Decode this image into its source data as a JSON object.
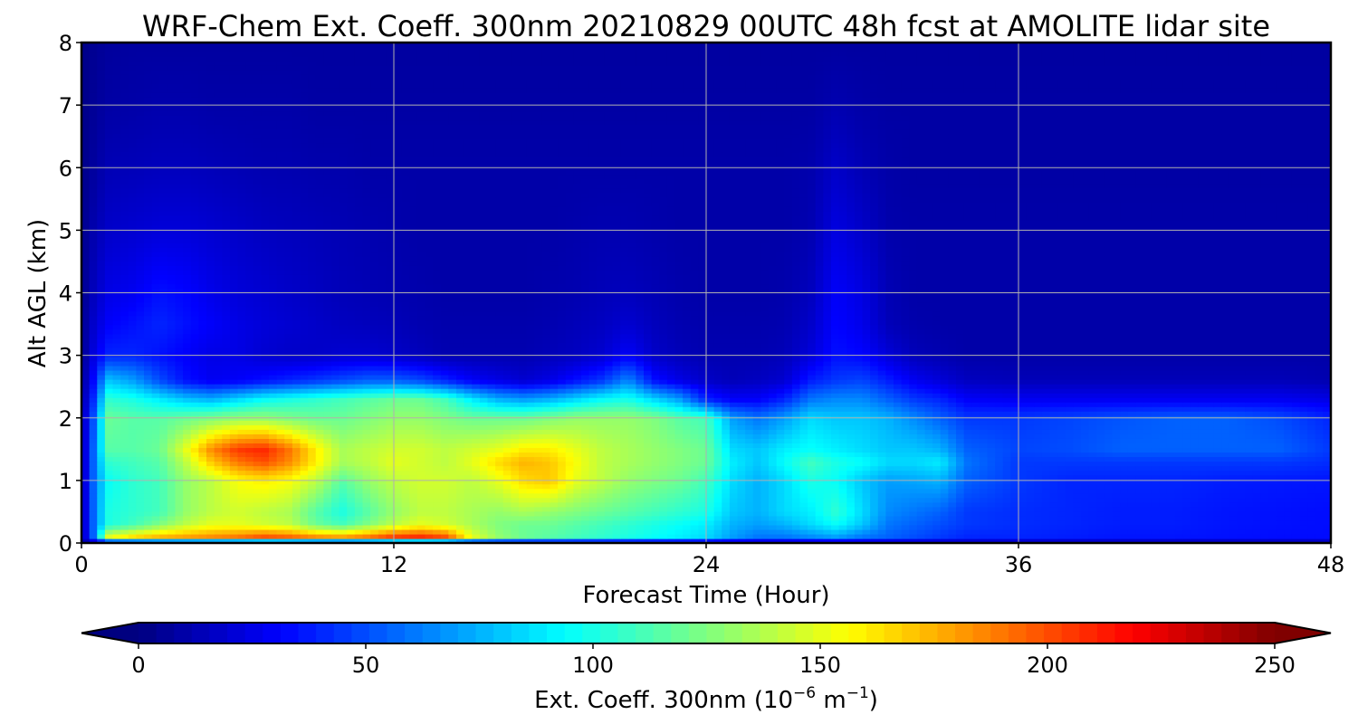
{
  "chart_data": {
    "type": "heatmap",
    "title": "WRF-Chem Ext. Coeff. 300nm  20210829 00UTC 48h fcst at AMOLITE lidar site",
    "xlabel": "Forecast Time (Hour)",
    "ylabel": "Alt AGL (km)",
    "xlim": [
      0,
      48
    ],
    "ylim": [
      0,
      8
    ],
    "xticks": [
      0,
      12,
      24,
      36,
      48
    ],
    "yticks": [
      0,
      1,
      2,
      3,
      4,
      5,
      6,
      7,
      8
    ],
    "grid": true,
    "colormap": "jet",
    "colorbar": {
      "label": "Ext. Coeff. 300nm  (10",
      "label_exp1": "−6",
      "label_mid": " m",
      "label_exp2": "−1",
      "label_end": ")",
      "range": [
        0,
        250
      ],
      "ticks": [
        0,
        50,
        100,
        150,
        200,
        250
      ],
      "extend": "both"
    },
    "x": [
      0,
      0.5,
      1,
      2,
      3,
      4,
      5,
      6,
      7,
      8,
      9,
      10,
      11,
      12,
      13,
      14,
      15,
      16,
      17,
      18,
      19,
      20,
      21,
      22,
      23,
      24,
      25,
      26,
      27,
      28,
      29,
      30,
      31,
      32,
      33,
      34,
      36,
      38,
      40,
      42,
      44,
      46,
      48
    ],
    "y": [
      0,
      0.1,
      0.3,
      0.5,
      1.0,
      1.3,
      1.5,
      2.0,
      2.3,
      2.6,
      3.0,
      3.5,
      4.0,
      5.0,
      6.0,
      7.0,
      8.0
    ],
    "z": [
      [
        10,
        10,
        10,
        10,
        10,
        10,
        10,
        10,
        10,
        10,
        10,
        10,
        10,
        10,
        10,
        10,
        10,
        10,
        10,
        10,
        10,
        10,
        10,
        10,
        10,
        10,
        10,
        10,
        10,
        10,
        10,
        10,
        10,
        10,
        10,
        10,
        10,
        10,
        10,
        10,
        10,
        10,
        10
      ],
      [
        10,
        60,
        150,
        165,
        175,
        180,
        185,
        190,
        200,
        195,
        185,
        180,
        190,
        205,
        210,
        200,
        150,
        130,
        120,
        115,
        110,
        105,
        100,
        95,
        90,
        85,
        70,
        60,
        60,
        65,
        70,
        60,
        55,
        50,
        45,
        40,
        40,
        38,
        36,
        36,
        35,
        34,
        34
      ],
      [
        10,
        60,
        100,
        110,
        125,
        140,
        150,
        150,
        145,
        140,
        120,
        110,
        125,
        140,
        150,
        145,
        135,
        125,
        120,
        120,
        115,
        110,
        105,
        100,
        95,
        90,
        75,
        70,
        75,
        85,
        95,
        80,
        60,
        55,
        50,
        45,
        42,
        40,
        38,
        38,
        36,
        35,
        34
      ],
      [
        10,
        60,
        100,
        105,
        110,
        130,
        140,
        145,
        140,
        135,
        115,
        100,
        115,
        130,
        140,
        140,
        135,
        130,
        135,
        130,
        125,
        120,
        115,
        110,
        105,
        100,
        80,
        75,
        85,
        90,
        105,
        85,
        65,
        60,
        55,
        45,
        42,
        40,
        38,
        38,
        36,
        35,
        34
      ],
      [
        10,
        60,
        95,
        105,
        110,
        130,
        140,
        155,
        160,
        155,
        140,
        115,
        130,
        140,
        145,
        145,
        140,
        150,
        165,
        170,
        150,
        140,
        130,
        125,
        120,
        110,
        85,
        75,
        85,
        100,
        95,
        80,
        70,
        72,
        75,
        55,
        45,
        40,
        40,
        40,
        38,
        37,
        36
      ],
      [
        10,
        60,
        105,
        110,
        115,
        140,
        170,
        190,
        200,
        185,
        160,
        135,
        140,
        150,
        145,
        140,
        150,
        165,
        175,
        170,
        155,
        140,
        135,
        130,
        125,
        120,
        90,
        80,
        95,
        110,
        100,
        95,
        85,
        85,
        90,
        60,
        45,
        45,
        45,
        45,
        45,
        45,
        42
      ],
      [
        10,
        60,
        115,
        115,
        120,
        150,
        185,
        205,
        210,
        190,
        160,
        135,
        140,
        145,
        145,
        140,
        145,
        150,
        160,
        160,
        150,
        140,
        135,
        130,
        125,
        120,
        85,
        80,
        90,
        95,
        90,
        85,
        80,
        80,
        75,
        55,
        48,
        50,
        55,
        55,
        55,
        55,
        45
      ],
      [
        10,
        55,
        120,
        115,
        115,
        120,
        125,
        130,
        130,
        125,
        120,
        120,
        125,
        130,
        130,
        125,
        120,
        120,
        120,
        125,
        130,
        130,
        130,
        125,
        115,
        110,
        70,
        60,
        70,
        85,
        80,
        80,
        75,
        65,
        55,
        45,
        45,
        48,
        52,
        55,
        55,
        50,
        40
      ],
      [
        8,
        45,
        105,
        100,
        90,
        80,
        75,
        85,
        95,
        100,
        105,
        110,
        115,
        120,
        120,
        110,
        90,
        75,
        70,
        75,
        85,
        95,
        100,
        85,
        70,
        40,
        30,
        30,
        40,
        60,
        65,
        65,
        55,
        45,
        40,
        30,
        28,
        28,
        28,
        28,
        28,
        28,
        25
      ],
      [
        6,
        35,
        80,
        70,
        50,
        35,
        28,
        30,
        35,
        40,
        45,
        50,
        55,
        55,
        50,
        40,
        30,
        25,
        20,
        25,
        35,
        45,
        65,
        35,
        25,
        18,
        14,
        16,
        20,
        38,
        45,
        48,
        38,
        28,
        22,
        16,
        14,
        14,
        14,
        14,
        14,
        14,
        12
      ],
      [
        4,
        25,
        40,
        40,
        35,
        30,
        25,
        25,
        20,
        18,
        18,
        20,
        20,
        18,
        15,
        12,
        12,
        12,
        12,
        14,
        16,
        20,
        30,
        18,
        14,
        12,
        12,
        12,
        14,
        22,
        35,
        32,
        22,
        14,
        12,
        10,
        10,
        10,
        10,
        10,
        10,
        10,
        10
      ],
      [
        4,
        20,
        30,
        35,
        40,
        35,
        30,
        25,
        22,
        20,
        18,
        16,
        15,
        14,
        12,
        11,
        11,
        11,
        11,
        12,
        14,
        16,
        20,
        15,
        12,
        11,
        11,
        11,
        12,
        18,
        32,
        26,
        14,
        11,
        10,
        10,
        10,
        10,
        10,
        10,
        10,
        10,
        10
      ],
      [
        3,
        16,
        25,
        28,
        35,
        32,
        26,
        22,
        20,
        18,
        16,
        14,
        13,
        12,
        11,
        10,
        10,
        10,
        10,
        11,
        12,
        14,
        15,
        13,
        11,
        10,
        10,
        10,
        11,
        15,
        30,
        24,
        13,
        10,
        10,
        10,
        10,
        10,
        10,
        10,
        10,
        10,
        10
      ],
      [
        3,
        12,
        18,
        20,
        22,
        22,
        20,
        18,
        16,
        15,
        14,
        13,
        12,
        11,
        10,
        10,
        10,
        10,
        10,
        10,
        11,
        12,
        12,
        11,
        10,
        10,
        10,
        10,
        10,
        12,
        24,
        18,
        11,
        10,
        10,
        10,
        10,
        10,
        10,
        10,
        10,
        10,
        10
      ],
      [
        2,
        8,
        13,
        14,
        15,
        15,
        14,
        13,
        12,
        12,
        11,
        11,
        10,
        10,
        10,
        10,
        10,
        10,
        10,
        10,
        10,
        10,
        10,
        10,
        10,
        10,
        10,
        10,
        10,
        11,
        18,
        13,
        10,
        9,
        9,
        9,
        9,
        9,
        9,
        9,
        9,
        9,
        9
      ],
      [
        2,
        6,
        9,
        10,
        11,
        11,
        10,
        10,
        10,
        10,
        9,
        9,
        9,
        9,
        9,
        9,
        9,
        9,
        9,
        9,
        9,
        9,
        9,
        9,
        9,
        9,
        9,
        9,
        9,
        9,
        12,
        10,
        9,
        9,
        9,
        9,
        9,
        9,
        9,
        9,
        9,
        9,
        9
      ],
      [
        2,
        5,
        7,
        8,
        8,
        8,
        8,
        8,
        8,
        8,
        8,
        8,
        8,
        8,
        8,
        8,
        8,
        8,
        8,
        8,
        8,
        8,
        8,
        8,
        8,
        8,
        8,
        8,
        8,
        8,
        8,
        8,
        8,
        8,
        8,
        8,
        8,
        8,
        8,
        8,
        8,
        8,
        8
      ]
    ]
  }
}
